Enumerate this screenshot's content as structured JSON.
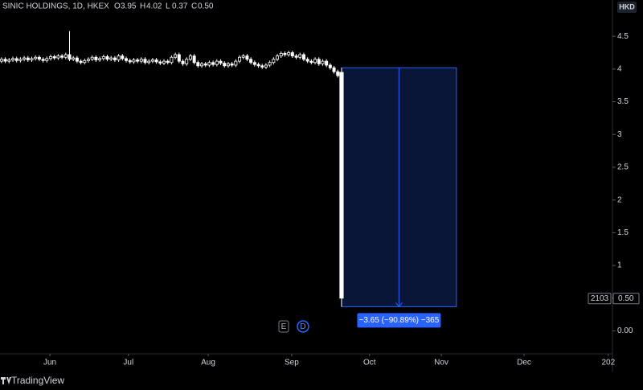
{
  "header": {
    "name": "SINIC HOLDINGS, 1D, HKEX",
    "legend": [
      {
        "key": "O",
        "value": "3.95"
      },
      {
        "key": "H",
        "value": "4.02"
      },
      {
        "key": "L",
        "value": "0.37"
      },
      {
        "key": "C",
        "value": "0.50"
      }
    ],
    "currency": "HKD"
  },
  "chart_data": {
    "type": "candlestick",
    "color": "#ffffff",
    "candles": [
      [
        4.12,
        4.18,
        4.09,
        4.15
      ],
      [
        4.15,
        4.18,
        4.09,
        4.12
      ],
      [
        4.12,
        4.17,
        4.09,
        4.14
      ],
      [
        4.14,
        4.19,
        4.11,
        4.16
      ],
      [
        4.16,
        4.19,
        4.1,
        4.13
      ],
      [
        4.13,
        4.18,
        4.1,
        4.15
      ],
      [
        4.15,
        4.2,
        4.12,
        4.17
      ],
      [
        4.17,
        4.2,
        4.11,
        4.14
      ],
      [
        4.14,
        4.19,
        4.11,
        4.16
      ],
      [
        4.16,
        4.21,
        4.13,
        4.18
      ],
      [
        4.18,
        4.21,
        4.12,
        4.15
      ],
      [
        4.15,
        4.18,
        4.1,
        4.13
      ],
      [
        4.13,
        4.19,
        4.1,
        4.16
      ],
      [
        4.16,
        4.22,
        4.13,
        4.19
      ],
      [
        4.19,
        4.22,
        4.14,
        4.17
      ],
      [
        4.17,
        4.23,
        4.14,
        4.2
      ],
      [
        4.2,
        4.23,
        4.15,
        4.18
      ],
      [
        4.18,
        4.25,
        4.15,
        4.22
      ],
      [
        4.22,
        4.58,
        4.12,
        4.15
      ],
      [
        4.15,
        4.2,
        4.12,
        4.17
      ],
      [
        4.17,
        4.2,
        4.09,
        4.12
      ],
      [
        4.12,
        4.15,
        4.07,
        4.1
      ],
      [
        4.1,
        4.16,
        4.07,
        4.13
      ],
      [
        4.13,
        4.18,
        4.1,
        4.15
      ],
      [
        4.15,
        4.21,
        4.12,
        4.18
      ],
      [
        4.18,
        4.21,
        4.11,
        4.14
      ],
      [
        4.14,
        4.19,
        4.11,
        4.16
      ],
      [
        4.16,
        4.22,
        4.13,
        4.19
      ],
      [
        4.19,
        4.22,
        4.12,
        4.15
      ],
      [
        4.15,
        4.2,
        4.12,
        4.17
      ],
      [
        4.17,
        4.2,
        4.11,
        4.14
      ],
      [
        4.14,
        4.23,
        4.11,
        4.2
      ],
      [
        4.2,
        4.23,
        4.13,
        4.16
      ],
      [
        4.16,
        4.19,
        4.1,
        4.13
      ],
      [
        4.13,
        4.16,
        4.08,
        4.11
      ],
      [
        4.11,
        4.17,
        4.08,
        4.14
      ],
      [
        4.14,
        4.17,
        4.09,
        4.12
      ],
      [
        4.12,
        4.18,
        4.09,
        4.15
      ],
      [
        4.15,
        4.18,
        4.07,
        4.1
      ],
      [
        4.1,
        4.15,
        4.07,
        4.12
      ],
      [
        4.12,
        4.17,
        4.09,
        4.14
      ],
      [
        4.14,
        4.17,
        4.08,
        4.11
      ],
      [
        4.11,
        4.14,
        4.06,
        4.09
      ],
      [
        4.09,
        4.15,
        4.06,
        4.12
      ],
      [
        4.12,
        4.15,
        4.07,
        4.1
      ],
      [
        4.1,
        4.21,
        4.07,
        4.18
      ],
      [
        4.18,
        4.25,
        4.15,
        4.22
      ],
      [
        4.22,
        4.25,
        4.09,
        4.12
      ],
      [
        4.12,
        4.15,
        4.05,
        4.08
      ],
      [
        4.08,
        4.18,
        4.05,
        4.15
      ],
      [
        4.15,
        4.23,
        4.12,
        4.2
      ],
      [
        4.2,
        4.23,
        4.07,
        4.1
      ],
      [
        4.1,
        4.13,
        4.02,
        4.05
      ],
      [
        4.05,
        4.11,
        4.02,
        4.08
      ],
      [
        4.08,
        4.11,
        4.03,
        4.06
      ],
      [
        4.06,
        4.13,
        4.03,
        4.1
      ],
      [
        4.1,
        4.13,
        4.04,
        4.07
      ],
      [
        4.07,
        4.15,
        4.04,
        4.12
      ],
      [
        4.12,
        4.15,
        4.06,
        4.09
      ],
      [
        4.09,
        4.12,
        4.02,
        4.05
      ],
      [
        4.05,
        4.11,
        4.02,
        4.08
      ],
      [
        4.08,
        4.11,
        4.03,
        4.06
      ],
      [
        4.06,
        4.15,
        4.03,
        4.12
      ],
      [
        4.12,
        4.21,
        4.09,
        4.18
      ],
      [
        4.18,
        4.23,
        4.15,
        4.2
      ],
      [
        4.2,
        4.23,
        4.12,
        4.15
      ],
      [
        4.15,
        4.18,
        4.07,
        4.1
      ],
      [
        4.1,
        4.13,
        4.04,
        4.07
      ],
      [
        4.07,
        4.1,
        4.02,
        4.05
      ],
      [
        4.05,
        4.08,
        4.0,
        4.03
      ],
      [
        4.03,
        4.09,
        4.0,
        4.06
      ],
      [
        4.06,
        4.13,
        4.03,
        4.1
      ],
      [
        4.1,
        4.18,
        4.07,
        4.15
      ],
      [
        4.15,
        4.23,
        4.12,
        4.2
      ],
      [
        4.2,
        4.27,
        4.17,
        4.24
      ],
      [
        4.24,
        4.27,
        4.19,
        4.22
      ],
      [
        4.22,
        4.28,
        4.19,
        4.25
      ],
      [
        4.25,
        4.28,
        4.17,
        4.2
      ],
      [
        4.2,
        4.23,
        4.15,
        4.18
      ],
      [
        4.18,
        4.25,
        4.15,
        4.22
      ],
      [
        4.22,
        4.25,
        4.12,
        4.15
      ],
      [
        4.15,
        4.18,
        4.09,
        4.12
      ],
      [
        4.12,
        4.15,
        4.07,
        4.1
      ],
      [
        4.1,
        4.18,
        4.07,
        4.15
      ],
      [
        4.15,
        4.18,
        4.05,
        4.08
      ],
      [
        4.08,
        4.15,
        4.05,
        4.12
      ],
      [
        4.12,
        4.15,
        4.03,
        4.06
      ],
      [
        4.06,
        4.09,
        3.99,
        4.02
      ],
      [
        4.02,
        4.05,
        3.93,
        3.96
      ],
      [
        3.96,
        3.99,
        3.87,
        3.9
      ],
      [
        3.95,
        4.02,
        0.37,
        0.5
      ]
    ],
    "xlim": [
      -0.4,
      161.7
    ],
    "xticks": [
      {
        "value": 12.8,
        "label": "Jun"
      },
      {
        "value": 33.6,
        "label": "Jul"
      },
      {
        "value": 54.7,
        "label": "Aug"
      },
      {
        "value": 76.8,
        "label": "Sep"
      },
      {
        "value": 97.4,
        "label": "Oct"
      },
      {
        "value": 116.4,
        "label": "Nov"
      },
      {
        "value": 138.3,
        "label": "Dec"
      },
      {
        "value": 160.6,
        "label": "202"
      }
    ],
    "ylim": [
      -0.35,
      5.055
    ],
    "yticks": [
      {
        "value": 0,
        "label": "0.00"
      },
      {
        "value": 0.5,
        "label": "0.50"
      },
      1,
      1.5,
      2,
      2.5,
      3,
      3.5,
      4,
      4.5
    ],
    "measure": {
      "from": 4.02,
      "to": 0.37,
      "x_from": 90,
      "x_to": 120.4,
      "label": "−3.65 (−90.89%) −365"
    },
    "last_price": {
      "value": 0.5,
      "label": "0.50",
      "symbol": "2103"
    },
    "badges": [
      "E",
      "D"
    ]
  },
  "footer": {
    "brand": "TradingView"
  }
}
